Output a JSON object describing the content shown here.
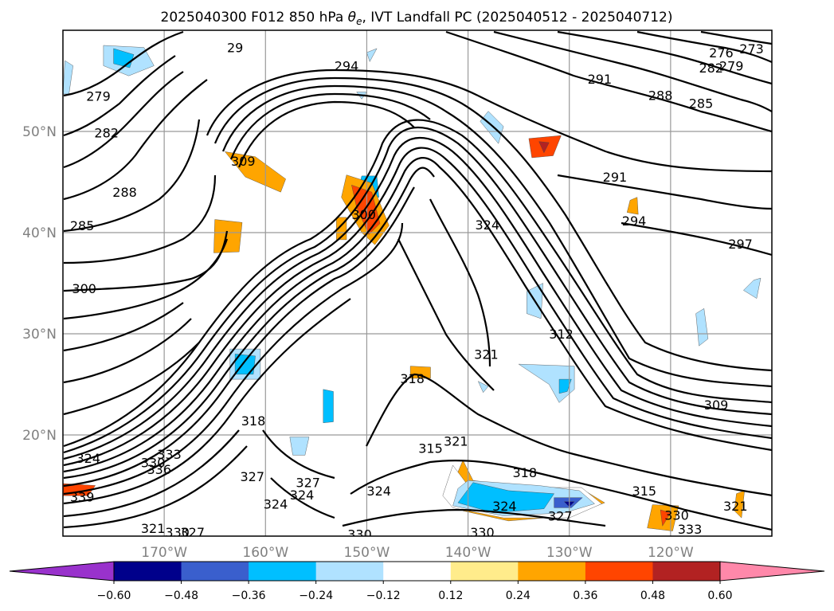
{
  "chart_data": {
    "type": "contour_map",
    "title": "2025040300 F012 850 hPa θe, IVT Landfall PC (2025040512 - 2025040712)",
    "title_parts": {
      "prefix": "2025040300 F012 850 hPa ",
      "theta": "θ",
      "theta_sub": "e",
      "suffix": ", IVT Landfall PC (2025040512 - 2025040712)"
    },
    "map_extent": {
      "lon": [
        -180,
        -110
      ],
      "lat": [
        10,
        60
      ]
    },
    "lon_ticks": [
      {
        "value": -170,
        "label": "170°W"
      },
      {
        "value": -160,
        "label": "160°W"
      },
      {
        "value": -150,
        "label": "150°W"
      },
      {
        "value": -140,
        "label": "140°W"
      },
      {
        "value": -130,
        "label": "130°W"
      },
      {
        "value": -120,
        "label": "120°W"
      }
    ],
    "lat_ticks": [
      {
        "value": 20,
        "label": "20°N"
      },
      {
        "value": 30,
        "label": "30°N"
      },
      {
        "value": 40,
        "label": "40°N"
      },
      {
        "value": 50,
        "label": "50°N"
      }
    ],
    "grid": true,
    "contour_variable": "850 hPa theta-e (K)",
    "contour_labels": [
      {
        "text": "294",
        "lon": -152,
        "lat": 56.5
      },
      {
        "text": "291",
        "lon": -127,
        "lat": 55.2
      },
      {
        "text": "288",
        "lon": -121,
        "lat": 53.6
      },
      {
        "text": "285",
        "lon": -117,
        "lat": 52.8
      },
      {
        "text": "282",
        "lon": -116,
        "lat": 56.3
      },
      {
        "text": "279",
        "lon": -114,
        "lat": 56.5
      },
      {
        "text": "276",
        "lon": -115,
        "lat": 57.8
      },
      {
        "text": "273",
        "lon": -112,
        "lat": 58.2
      },
      {
        "text": "279",
        "lon": -176.5,
        "lat": 53.5
      },
      {
        "text": "282",
        "lon": -175.7,
        "lat": 49.9
      },
      {
        "text": "288",
        "lon": -173.9,
        "lat": 44.0
      },
      {
        "text": "285",
        "lon": -178.1,
        "lat": 40.7
      },
      {
        "text": "309",
        "lon": -162.2,
        "lat": 47.1
      },
      {
        "text": "300",
        "lon": -150.3,
        "lat": 41.8
      },
      {
        "text": "300",
        "lon": -177.9,
        "lat": 34.5
      },
      {
        "text": "324",
        "lon": -138.1,
        "lat": 40.8
      },
      {
        "text": "291",
        "lon": -125.5,
        "lat": 45.5
      },
      {
        "text": "294",
        "lon": -123.6,
        "lat": 41.2
      },
      {
        "text": "297",
        "lon": -113.1,
        "lat": 38.9
      },
      {
        "text": "312",
        "lon": -130.8,
        "lat": 30.0
      },
      {
        "text": "321",
        "lon": -138.2,
        "lat": 28.0
      },
      {
        "text": "318",
        "lon": -145.5,
        "lat": 25.6
      },
      {
        "text": "309",
        "lon": -115.5,
        "lat": 23.0
      },
      {
        "text": "315",
        "lon": -143.7,
        "lat": 18.7
      },
      {
        "text": "321",
        "lon": -141.2,
        "lat": 19.4
      },
      {
        "text": "318",
        "lon": -134.4,
        "lat": 16.3
      },
      {
        "text": "315",
        "lon": -122.6,
        "lat": 14.5
      },
      {
        "text": "324",
        "lon": -136.4,
        "lat": 13.0
      },
      {
        "text": "327",
        "lon": -130.9,
        "lat": 12.0
      },
      {
        "text": "330",
        "lon": -119.4,
        "lat": 12.1
      },
      {
        "text": "333",
        "lon": -118.1,
        "lat": 10.7
      },
      {
        "text": "321",
        "lon": -113.6,
        "lat": 13.0
      },
      {
        "text": "330",
        "lon": -138.6,
        "lat": 10.4
      },
      {
        "text": "324",
        "lon": -148.8,
        "lat": 14.5
      },
      {
        "text": "327",
        "lon": -155.8,
        "lat": 15.3
      },
      {
        "text": "324",
        "lon": -156.4,
        "lat": 14.1
      },
      {
        "text": "327",
        "lon": -161.3,
        "lat": 15.9
      },
      {
        "text": "324",
        "lon": -159.0,
        "lat": 13.2
      },
      {
        "text": "318",
        "lon": -161.2,
        "lat": 21.4
      },
      {
        "text": "333",
        "lon": -169.5,
        "lat": 18.1
      },
      {
        "text": "336",
        "lon": -170.5,
        "lat": 16.6
      },
      {
        "text": "339",
        "lon": -178.1,
        "lat": 13.9
      },
      {
        "text": "330",
        "lon": -171.1,
        "lat": 17.3
      },
      {
        "text": "324",
        "lon": -177.5,
        "lat": 17.7
      },
      {
        "text": "321",
        "lon": -171.1,
        "lat": 10.8
      },
      {
        "text": "330",
        "lon": -168.7,
        "lat": 10.4
      },
      {
        "text": "327",
        "lon": -167.2,
        "lat": 10.4
      },
      {
        "text": "330",
        "lon": -150.7,
        "lat": 10.2
      },
      {
        "text": "29",
        "lon": -163.0,
        "lat": 58.3
      }
    ],
    "colorbar": {
      "variable": "IVT Landfall PC",
      "boundaries": [
        -0.6,
        -0.48,
        -0.36,
        -0.24,
        -0.12,
        0.12,
        0.24,
        0.36,
        0.48,
        0.6
      ],
      "tick_labels": [
        "−0.60",
        "−0.48",
        "−0.36",
        "−0.24",
        "−0.12",
        "0.12",
        "0.24",
        "0.36",
        "0.48",
        "0.60"
      ],
      "colors": [
        "#9932cc",
        "#00008b",
        "#3a5fcd",
        "#00bfff",
        "#b0e2ff",
        "#ffffff",
        "#ffec8b",
        "#ffa500",
        "#ff4500",
        "#b22222",
        "#ff88aa"
      ],
      "extend": "both"
    },
    "shaded_regions": [
      {
        "level": -0.24,
        "pts": [
          [
            -176,
            58.5
          ],
          [
            -172,
            58.3
          ],
          [
            -171,
            56.5
          ],
          [
            -173.5,
            55.5
          ],
          [
            -176,
            56.5
          ]
        ]
      },
      {
        "level": -0.36,
        "pts": [
          [
            -175,
            58.2
          ],
          [
            -173,
            57.6
          ],
          [
            -173.4,
            56.3
          ],
          [
            -175,
            56.7
          ]
        ]
      },
      {
        "level": -0.24,
        "pts": [
          [
            -179.8,
            57
          ],
          [
            -179,
            56.5
          ],
          [
            -179.4,
            53.7
          ],
          [
            -180,
            53.7
          ]
        ]
      },
      {
        "level": -0.24,
        "pts": [
          [
            -163.5,
            28.5
          ],
          [
            -160.5,
            28.5
          ],
          [
            -160.5,
            25.5
          ],
          [
            -163.5,
            25.5
          ]
        ]
      },
      {
        "level": -0.36,
        "pts": [
          [
            -163,
            28
          ],
          [
            -161,
            27.8
          ],
          [
            -161.2,
            26
          ],
          [
            -163,
            26
          ]
        ]
      },
      {
        "level": -0.24,
        "pts": [
          [
            -138,
            52
          ],
          [
            -136.5,
            50.5
          ],
          [
            -137,
            48.8
          ],
          [
            -138.8,
            51
          ]
        ]
      },
      {
        "level": -0.36,
        "pts": [
          [
            -149,
            45.6
          ],
          [
            -148.8,
            43.5
          ],
          [
            -151.1,
            43.3
          ],
          [
            -150.5,
            45.6
          ]
        ]
      },
      {
        "level": 0.24,
        "pts": [
          [
            -152,
            45.7
          ],
          [
            -149.5,
            44.9
          ],
          [
            -147.8,
            40.7
          ],
          [
            -149.2,
            38.8
          ],
          [
            -150.5,
            40
          ],
          [
            -152.5,
            43.5
          ]
        ]
      },
      {
        "level": 0.36,
        "pts": [
          [
            -151.5,
            44.7
          ],
          [
            -149.5,
            44
          ],
          [
            -148.7,
            40.9
          ],
          [
            -149.8,
            39.8
          ],
          [
            -151,
            42.5
          ]
        ]
      },
      {
        "level": 0.24,
        "pts": [
          [
            -165,
            41.3
          ],
          [
            -162.3,
            41
          ],
          [
            -162.6,
            38.1
          ],
          [
            -165.1,
            38
          ]
        ]
      },
      {
        "level": 0.24,
        "pts": [
          [
            -153,
            41.5
          ],
          [
            -152,
            41.5
          ],
          [
            -152,
            39.3
          ],
          [
            -153,
            39.3
          ]
        ]
      },
      {
        "level": 0.36,
        "pts": [
          [
            -134,
            49.3
          ],
          [
            -130.8,
            49.6
          ],
          [
            -131.6,
            47.6
          ],
          [
            -133.7,
            47.4
          ]
        ]
      },
      {
        "level": 0.48,
        "pts": [
          [
            -133,
            49
          ],
          [
            -132,
            48.9
          ],
          [
            -132.5,
            47.9
          ]
        ]
      },
      {
        "level": 0.24,
        "pts": [
          [
            -140.5,
            17.5
          ],
          [
            -139.5,
            15.5
          ],
          [
            -133,
            14.5
          ],
          [
            -128.5,
            14.5
          ],
          [
            -126.5,
            13.3
          ],
          [
            -130,
            12
          ],
          [
            -136,
            11.5
          ],
          [
            -140.5,
            12.5
          ],
          [
            -142,
            14
          ]
        ]
      },
      {
        "level": -0.12,
        "pts": [
          [
            -141.5,
            17
          ],
          [
            -140,
            15
          ],
          [
            -133,
            14.8
          ],
          [
            -128.8,
            14.8
          ],
          [
            -126.8,
            13.2
          ],
          [
            -130,
            11.8
          ],
          [
            -136.5,
            11.8
          ],
          [
            -141.5,
            12.8
          ],
          [
            -142.5,
            14
          ]
        ]
      },
      {
        "level": -0.24,
        "pts": [
          [
            -140,
            15.5
          ],
          [
            -133,
            15
          ],
          [
            -129,
            14.5
          ],
          [
            -127.5,
            13.2
          ],
          [
            -130.5,
            12.3
          ],
          [
            -136.5,
            12
          ],
          [
            -141.5,
            13
          ],
          [
            -141,
            14.7
          ]
        ]
      },
      {
        "level": -0.36,
        "pts": [
          [
            -139.5,
            15.3
          ],
          [
            -136,
            14.5
          ],
          [
            -131.5,
            14.2
          ],
          [
            -132.5,
            12.7
          ],
          [
            -137.5,
            12.3
          ],
          [
            -141,
            13.3
          ]
        ]
      },
      {
        "level": -0.48,
        "pts": [
          [
            -131.5,
            13.8
          ],
          [
            -128.7,
            13.8
          ],
          [
            -129.8,
            12.8
          ],
          [
            -131.5,
            12.8
          ]
        ]
      },
      {
        "level": -0.6,
        "pts": [
          [
            -130.5,
            13.4
          ],
          [
            -129.5,
            13.4
          ],
          [
            -130,
            12.9
          ]
        ]
      },
      {
        "level": -0.24,
        "pts": [
          [
            -135,
            27
          ],
          [
            -129.5,
            26.8
          ],
          [
            -129.5,
            24.5
          ],
          [
            -131,
            23.2
          ],
          [
            -132,
            25
          ]
        ]
      },
      {
        "level": -0.36,
        "pts": [
          [
            -131,
            25.5
          ],
          [
            -129.8,
            25.5
          ],
          [
            -130.2,
            24.3
          ],
          [
            -131,
            24.1
          ]
        ]
      },
      {
        "level": -0.36,
        "pts": [
          [
            -154.3,
            24.5
          ],
          [
            -153.3,
            24.3
          ],
          [
            -153.3,
            21.3
          ],
          [
            -154.3,
            21.2
          ]
        ]
      },
      {
        "level": -0.24,
        "pts": [
          [
            -157.6,
            19.8
          ],
          [
            -155.7,
            19.8
          ],
          [
            -156.1,
            18
          ],
          [
            -157.3,
            18
          ]
        ]
      },
      {
        "level": -0.24,
        "pts": [
          [
            -134.2,
            34.2
          ],
          [
            -132.6,
            35
          ],
          [
            -132.8,
            31.5
          ],
          [
            -134.2,
            32
          ]
        ]
      },
      {
        "level": -0.24,
        "pts": [
          [
            -111.8,
            35.3
          ],
          [
            -111.1,
            35.5
          ],
          [
            -111.5,
            33.5
          ],
          [
            -112.8,
            34.3
          ]
        ]
      },
      {
        "level": 0.24,
        "pts": [
          [
            -121.8,
            13.1
          ],
          [
            -119.2,
            13
          ],
          [
            -119.8,
            10.5
          ],
          [
            -122.3,
            10.8
          ]
        ]
      },
      {
        "level": 0.36,
        "pts": [
          [
            -121,
            12.6
          ],
          [
            -120,
            12.3
          ],
          [
            -120.8,
            11
          ]
        ]
      },
      {
        "level": 0.36,
        "pts": [
          [
            -180,
            15.2
          ],
          [
            -176.8,
            15
          ],
          [
            -177.5,
            14
          ],
          [
            -180,
            14
          ]
        ]
      },
      {
        "level": 0.24,
        "pts": [
          [
            -113.5,
            14.2
          ],
          [
            -112.7,
            14.5
          ],
          [
            -113,
            11.8
          ],
          [
            -113.7,
            12.5
          ]
        ]
      },
      {
        "level": 0.24,
        "pts": [
          [
            -164,
            48
          ],
          [
            -161,
            47.5
          ],
          [
            -158,
            45.3
          ],
          [
            -158.5,
            44
          ],
          [
            -162,
            45.5
          ]
        ]
      },
      {
        "level": -0.24,
        "pts": [
          [
            -117.5,
            32
          ],
          [
            -116.7,
            32.5
          ],
          [
            -116.3,
            29.5
          ],
          [
            -117.2,
            28.8
          ]
        ]
      },
      {
        "level": -0.24,
        "pts": [
          [
            -150,
            57.8
          ],
          [
            -149,
            58.2
          ],
          [
            -149.7,
            56.9
          ]
        ]
      },
      {
        "level": 0.24,
        "pts": [
          [
            -145.7,
            26.8
          ],
          [
            -143.7,
            26.7
          ],
          [
            -143.7,
            25.6
          ],
          [
            -145.7,
            25.6
          ]
        ]
      },
      {
        "level": 0.24,
        "pts": [
          [
            -124,
            43.2
          ],
          [
            -123.3,
            43.5
          ],
          [
            -123.2,
            41.8
          ],
          [
            -124.3,
            42
          ]
        ]
      },
      {
        "level": -0.24,
        "pts": [
          [
            -151,
            53.9
          ],
          [
            -150,
            53.9
          ],
          [
            -150.5,
            53.2
          ]
        ]
      },
      {
        "level": -0.24,
        "pts": [
          [
            -139,
            25.3
          ],
          [
            -138,
            24.8
          ],
          [
            -138.5,
            24.2
          ]
        ]
      }
    ]
  }
}
